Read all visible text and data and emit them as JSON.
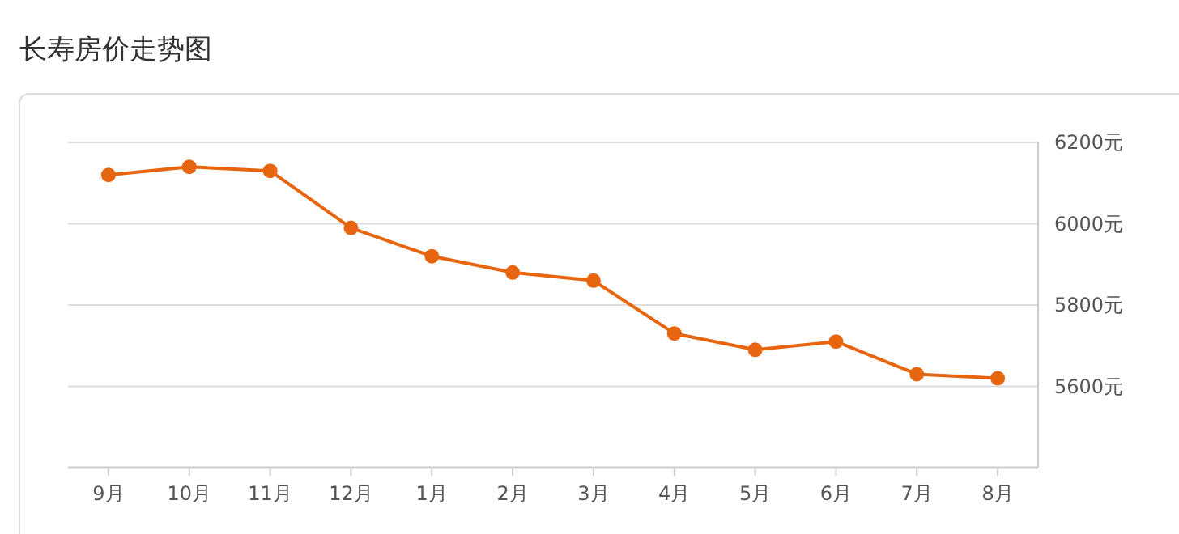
{
  "chart_data": {
    "type": "line",
    "title": "长寿房价走势图",
    "categories": [
      "9月",
      "10月",
      "11月",
      "12月",
      "1月",
      "2月",
      "3月",
      "4月",
      "5月",
      "6月",
      "7月",
      "8月"
    ],
    "series": [
      {
        "color": "#e8650f",
        "values": [
          6120,
          6140,
          6130,
          5990,
          5920,
          5880,
          5860,
          5730,
          5690,
          5710,
          5630,
          5620
        ]
      }
    ],
    "ylim": [
      5400,
      6200
    ],
    "yticks": [
      {
        "value": 5600,
        "label": "5600元"
      },
      {
        "value": 5800,
        "label": "5800元"
      },
      {
        "value": 6000,
        "label": "6000元"
      },
      {
        "value": 6200,
        "label": "6200元"
      }
    ],
    "grid": "y",
    "marker": "circle",
    "line_style": "solid"
  }
}
